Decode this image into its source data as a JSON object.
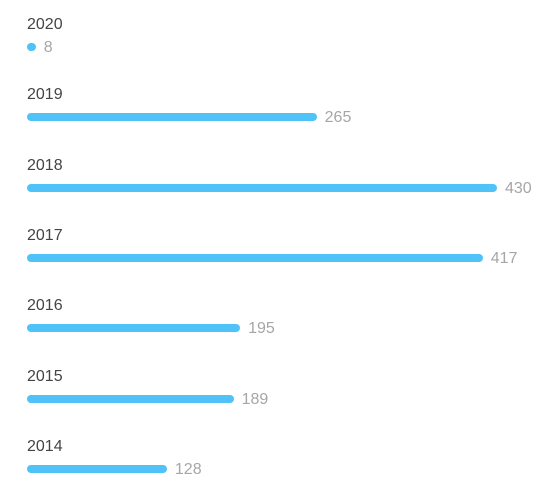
{
  "chart_data": {
    "type": "bar",
    "orientation": "horizontal",
    "categories": [
      "2020",
      "2019",
      "2018",
      "2017",
      "2016",
      "2015",
      "2014"
    ],
    "values": [
      8,
      265,
      430,
      417,
      195,
      189,
      128
    ],
    "title": "",
    "xlabel": "",
    "ylabel": "",
    "xlim": [
      0,
      430
    ],
    "grid": false,
    "bar_color": "#4fc3f7"
  }
}
